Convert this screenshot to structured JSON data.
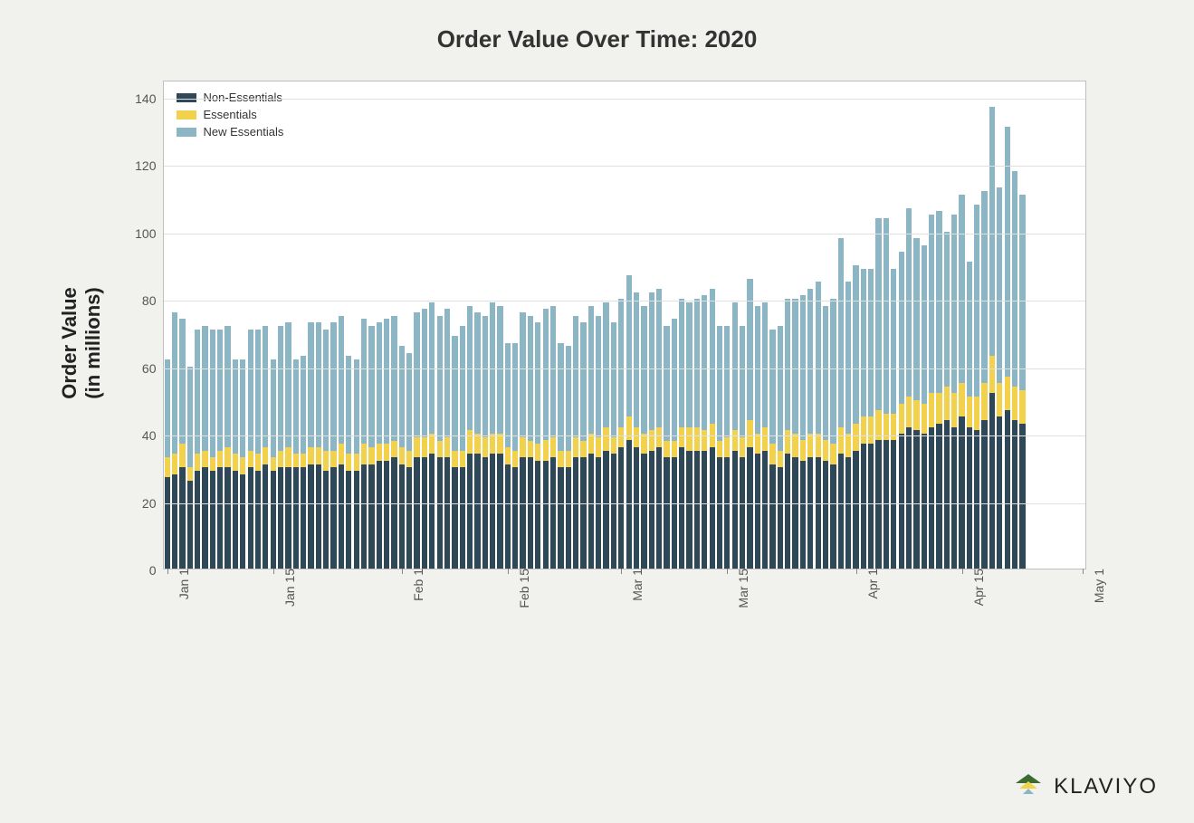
{
  "chart": {
    "type": "stacked-bar",
    "title": "Order Value Over Time: 2020",
    "ylabel": "Order Value\n(in millions)",
    "title_fontsize": 26,
    "ylabel_fontsize": 22,
    "tick_fontsize": 14,
    "legend_fontsize": 13,
    "background_color": "#f1f1ed",
    "plot_background": "#ffffff",
    "border_color": "#bfbfbf",
    "grid_color": "#e0e0e0",
    "ylim": [
      0,
      145
    ],
    "yticks": [
      0,
      20,
      40,
      60,
      80,
      100,
      120,
      140
    ],
    "xticks": [
      {
        "index": 0,
        "label": "Jan 1"
      },
      {
        "index": 14,
        "label": "Jan 15"
      },
      {
        "index": 31,
        "label": "Feb 1"
      },
      {
        "index": 45,
        "label": "Feb 15"
      },
      {
        "index": 60,
        "label": "Mar 1"
      },
      {
        "index": 74,
        "label": "Mar 15"
      },
      {
        "index": 91,
        "label": "Apr 1"
      },
      {
        "index": 105,
        "label": "Apr 15"
      },
      {
        "index": 121,
        "label": "May 1"
      }
    ],
    "x_domain_count": 122,
    "series": [
      {
        "key": "non_essentials",
        "label": "Non-Essentials",
        "color": "#2f4858"
      },
      {
        "key": "essentials",
        "label": "Essentials",
        "color": "#f2d14d"
      },
      {
        "key": "new_essentials",
        "label": "New Essentials",
        "color": "#8cb6c4"
      }
    ],
    "bar_gap_ratio": 0.25,
    "data": [
      {
        "ne": 27,
        "es": 6,
        "nw": 29
      },
      {
        "ne": 28,
        "es": 6,
        "nw": 42
      },
      {
        "ne": 30,
        "es": 7,
        "nw": 37
      },
      {
        "ne": 26,
        "es": 4,
        "nw": 30
      },
      {
        "ne": 29,
        "es": 5,
        "nw": 37
      },
      {
        "ne": 30,
        "es": 5,
        "nw": 37
      },
      {
        "ne": 29,
        "es": 4,
        "nw": 38
      },
      {
        "ne": 30,
        "es": 5,
        "nw": 36
      },
      {
        "ne": 30,
        "es": 6,
        "nw": 36
      },
      {
        "ne": 29,
        "es": 5,
        "nw": 28
      },
      {
        "ne": 28,
        "es": 5,
        "nw": 29
      },
      {
        "ne": 30,
        "es": 5,
        "nw": 36
      },
      {
        "ne": 29,
        "es": 5,
        "nw": 37
      },
      {
        "ne": 31,
        "es": 5,
        "nw": 36
      },
      {
        "ne": 29,
        "es": 4,
        "nw": 29
      },
      {
        "ne": 30,
        "es": 5,
        "nw": 37
      },
      {
        "ne": 30,
        "es": 6,
        "nw": 37
      },
      {
        "ne": 30,
        "es": 4,
        "nw": 28
      },
      {
        "ne": 30,
        "es": 4,
        "nw": 29
      },
      {
        "ne": 31,
        "es": 5,
        "nw": 37
      },
      {
        "ne": 31,
        "es": 5,
        "nw": 37
      },
      {
        "ne": 29,
        "es": 6,
        "nw": 36
      },
      {
        "ne": 30,
        "es": 5,
        "nw": 38
      },
      {
        "ne": 31,
        "es": 6,
        "nw": 38
      },
      {
        "ne": 29,
        "es": 5,
        "nw": 29
      },
      {
        "ne": 29,
        "es": 5,
        "nw": 28
      },
      {
        "ne": 31,
        "es": 6,
        "nw": 37
      },
      {
        "ne": 31,
        "es": 5,
        "nw": 36
      },
      {
        "ne": 32,
        "es": 5,
        "nw": 36
      },
      {
        "ne": 32,
        "es": 5,
        "nw": 37
      },
      {
        "ne": 33,
        "es": 5,
        "nw": 37
      },
      {
        "ne": 31,
        "es": 5,
        "nw": 30
      },
      {
        "ne": 30,
        "es": 5,
        "nw": 29
      },
      {
        "ne": 33,
        "es": 6,
        "nw": 37
      },
      {
        "ne": 33,
        "es": 6,
        "nw": 38
      },
      {
        "ne": 34,
        "es": 6,
        "nw": 39
      },
      {
        "ne": 33,
        "es": 5,
        "nw": 37
      },
      {
        "ne": 33,
        "es": 6,
        "nw": 38
      },
      {
        "ne": 30,
        "es": 5,
        "nw": 34
      },
      {
        "ne": 30,
        "es": 5,
        "nw": 37
      },
      {
        "ne": 34,
        "es": 7,
        "nw": 37
      },
      {
        "ne": 34,
        "es": 6,
        "nw": 36
      },
      {
        "ne": 33,
        "es": 6,
        "nw": 36
      },
      {
        "ne": 34,
        "es": 6,
        "nw": 39
      },
      {
        "ne": 34,
        "es": 6,
        "nw": 38
      },
      {
        "ne": 31,
        "es": 5,
        "nw": 31
      },
      {
        "ne": 30,
        "es": 5,
        "nw": 32
      },
      {
        "ne": 33,
        "es": 6,
        "nw": 37
      },
      {
        "ne": 33,
        "es": 5,
        "nw": 37
      },
      {
        "ne": 32,
        "es": 5,
        "nw": 36
      },
      {
        "ne": 32,
        "es": 6,
        "nw": 39
      },
      {
        "ne": 33,
        "es": 6,
        "nw": 39
      },
      {
        "ne": 30,
        "es": 5,
        "nw": 32
      },
      {
        "ne": 30,
        "es": 5,
        "nw": 31
      },
      {
        "ne": 33,
        "es": 6,
        "nw": 36
      },
      {
        "ne": 33,
        "es": 5,
        "nw": 35
      },
      {
        "ne": 34,
        "es": 6,
        "nw": 38
      },
      {
        "ne": 33,
        "es": 6,
        "nw": 36
      },
      {
        "ne": 35,
        "es": 7,
        "nw": 37
      },
      {
        "ne": 34,
        "es": 5,
        "nw": 34
      },
      {
        "ne": 36,
        "es": 6,
        "nw": 38
      },
      {
        "ne": 38,
        "es": 7,
        "nw": 42
      },
      {
        "ne": 36,
        "es": 6,
        "nw": 40
      },
      {
        "ne": 34,
        "es": 6,
        "nw": 38
      },
      {
        "ne": 35,
        "es": 6,
        "nw": 41
      },
      {
        "ne": 36,
        "es": 6,
        "nw": 41
      },
      {
        "ne": 33,
        "es": 5,
        "nw": 34
      },
      {
        "ne": 33,
        "es": 5,
        "nw": 36
      },
      {
        "ne": 36,
        "es": 6,
        "nw": 38
      },
      {
        "ne": 35,
        "es": 7,
        "nw": 37
      },
      {
        "ne": 35,
        "es": 7,
        "nw": 38
      },
      {
        "ne": 35,
        "es": 6,
        "nw": 40
      },
      {
        "ne": 36,
        "es": 7,
        "nw": 40
      },
      {
        "ne": 33,
        "es": 5,
        "nw": 34
      },
      {
        "ne": 33,
        "es": 6,
        "nw": 33
      },
      {
        "ne": 35,
        "es": 6,
        "nw": 38
      },
      {
        "ne": 33,
        "es": 6,
        "nw": 33
      },
      {
        "ne": 36,
        "es": 8,
        "nw": 42
      },
      {
        "ne": 34,
        "es": 6,
        "nw": 38
      },
      {
        "ne": 35,
        "es": 7,
        "nw": 37
      },
      {
        "ne": 31,
        "es": 6,
        "nw": 34
      },
      {
        "ne": 30,
        "es": 5,
        "nw": 37
      },
      {
        "ne": 34,
        "es": 7,
        "nw": 39
      },
      {
        "ne": 33,
        "es": 7,
        "nw": 40
      },
      {
        "ne": 32,
        "es": 6,
        "nw": 43
      },
      {
        "ne": 33,
        "es": 7,
        "nw": 43
      },
      {
        "ne": 33,
        "es": 7,
        "nw": 45
      },
      {
        "ne": 32,
        "es": 6,
        "nw": 40
      },
      {
        "ne": 31,
        "es": 6,
        "nw": 43
      },
      {
        "ne": 34,
        "es": 8,
        "nw": 56
      },
      {
        "ne": 33,
        "es": 7,
        "nw": 45
      },
      {
        "ne": 35,
        "es": 8,
        "nw": 47
      },
      {
        "ne": 37,
        "es": 8,
        "nw": 44
      },
      {
        "ne": 37,
        "es": 8,
        "nw": 44
      },
      {
        "ne": 38,
        "es": 9,
        "nw": 57
      },
      {
        "ne": 38,
        "es": 8,
        "nw": 58
      },
      {
        "ne": 38,
        "es": 8,
        "nw": 43
      },
      {
        "ne": 40,
        "es": 9,
        "nw": 45
      },
      {
        "ne": 42,
        "es": 9,
        "nw": 56
      },
      {
        "ne": 41,
        "es": 9,
        "nw": 48
      },
      {
        "ne": 40,
        "es": 9,
        "nw": 47
      },
      {
        "ne": 42,
        "es": 10,
        "nw": 53
      },
      {
        "ne": 43,
        "es": 9,
        "nw": 54
      },
      {
        "ne": 44,
        "es": 10,
        "nw": 46
      },
      {
        "ne": 42,
        "es": 10,
        "nw": 53
      },
      {
        "ne": 45,
        "es": 10,
        "nw": 56
      },
      {
        "ne": 42,
        "es": 9,
        "nw": 40
      },
      {
        "ne": 41,
        "es": 10,
        "nw": 57
      },
      {
        "ne": 44,
        "es": 11,
        "nw": 57
      },
      {
        "ne": 52,
        "es": 11,
        "nw": 74
      },
      {
        "ne": 45,
        "es": 10,
        "nw": 58
      },
      {
        "ne": 47,
        "es": 10,
        "nw": 74
      },
      {
        "ne": 44,
        "es": 10,
        "nw": 64
      },
      {
        "ne": 43,
        "es": 10,
        "nw": 58
      }
    ]
  },
  "brand": {
    "name": "KLAVIYO",
    "logo_colors": {
      "top": "#3a6b2f",
      "mid": "#f2d14d",
      "bot": "#8cb6c4"
    }
  }
}
